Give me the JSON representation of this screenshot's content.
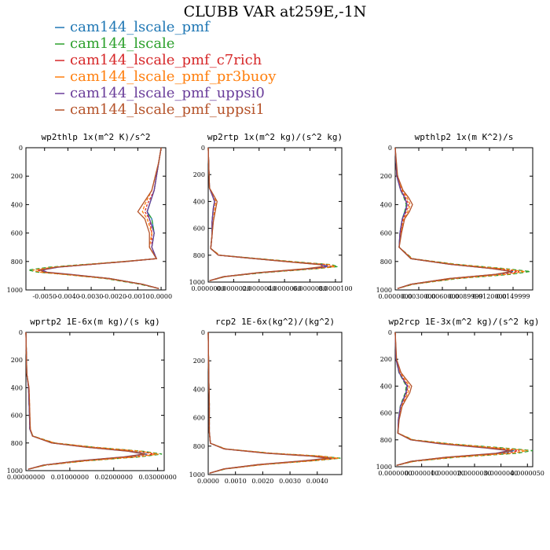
{
  "title": "CLUBB VAR at259E,-1N",
  "legend": [
    {
      "label": "cam144_lscale_pmf",
      "color": "#1f77b4"
    },
    {
      "label": "cam144_lscale",
      "color": "#2ca02c"
    },
    {
      "label": "cam144_lscale_pmf_c7rich",
      "color": "#d62728"
    },
    {
      "label": "cam144_lscale_pmf_pr3buoy",
      "color": "#ff7f0e"
    },
    {
      "label": "cam144_lscale_pmf_uppsi0",
      "color": "#6a3d9a"
    },
    {
      "label": "cam144_lscale_pmf_uppsi1",
      "color": "#b5532a"
    }
  ],
  "chart_data": [
    {
      "type": "line",
      "title": "wp2thlp  1x(m^2 K)/s^2",
      "xlim": [
        -0.0058,
        0.0002
      ],
      "ylim": [
        1000,
        0
      ],
      "yticks": [
        "0",
        "200",
        "400",
        "600",
        "800",
        "1000"
      ],
      "xticks": [
        "-0.0050",
        "-0.0040",
        "-0.0030",
        "-0.0020",
        "-0.0010",
        "0.0000"
      ],
      "xtick_values": [
        -0.005,
        -0.004,
        -0.003,
        -0.002,
        -0.001,
        0.0
      ],
      "y": [
        0,
        100,
        300,
        400,
        450,
        500,
        600,
        700,
        780,
        800,
        840,
        860,
        875,
        890,
        920,
        960,
        990
      ],
      "series": [
        {
          "values": [
            0.0,
            -0.0001,
            -0.0003,
            -0.0005,
            -0.0006,
            -0.0004,
            -0.0003,
            -0.0004,
            -0.0002,
            -0.0015,
            -0.0045,
            -0.0052,
            -0.005,
            -0.004,
            -0.0022,
            -0.0008,
            -0.0001
          ]
        },
        {
          "values": [
            0.0,
            -0.0001,
            -0.0003,
            -0.0005,
            -0.0006,
            -0.0004,
            -0.0003,
            -0.0004,
            -0.0002,
            -0.0016,
            -0.0048,
            -0.0057,
            -0.0053,
            -0.0042,
            -0.0024,
            -0.0009,
            -0.0001
          ]
        },
        {
          "values": [
            0.0,
            -0.0001,
            -0.0003,
            -0.0006,
            -0.0007,
            -0.0005,
            -0.0004,
            -0.0004,
            -0.0002,
            -0.0015,
            -0.0044,
            -0.0053,
            -0.0051,
            -0.0041,
            -0.0023,
            -0.0008,
            -0.0001
          ]
        },
        {
          "values": [
            0.0,
            -0.0001,
            -0.0004,
            -0.0007,
            -0.0008,
            -0.0006,
            -0.0004,
            -0.0005,
            -0.0002,
            -0.0016,
            -0.0046,
            -0.0055,
            -0.0052,
            -0.0042,
            -0.0023,
            -0.0008,
            -0.0001
          ]
        },
        {
          "values": [
            0.0,
            -0.0001,
            -0.0003,
            -0.0005,
            -0.0006,
            -0.0005,
            -0.0003,
            -0.0004,
            -0.0002,
            -0.0015,
            -0.0044,
            -0.0051,
            -0.0049,
            -0.0039,
            -0.0022,
            -0.0008,
            -0.0001
          ]
        },
        {
          "values": [
            0.0,
            -0.0001,
            -0.0004,
            -0.0008,
            -0.001,
            -0.0007,
            -0.0005,
            -0.0005,
            -0.0002,
            -0.0015,
            -0.0045,
            -0.0052,
            -0.005,
            -0.004,
            -0.0022,
            -0.0008,
            -0.0001
          ]
        }
      ]
    },
    {
      "type": "line",
      "title": "wp2rtp  1x(m^2 kg)/(s^2 kg)",
      "xlim": [
        0,
        1.05e-05
      ],
      "ylim": [
        1000,
        0
      ],
      "yticks": [
        "0",
        "200",
        "400",
        "600",
        "800",
        "1000"
      ],
      "xticks": [
        "0.0000000",
        "0.0000020",
        "0.0000040",
        "0.0000060",
        "0.0000080",
        "0.0000100"
      ],
      "xtick_values": [
        0,
        2e-06,
        4e-06,
        6e-06,
        8e-06,
        1e-05
      ],
      "y": [
        0,
        300,
        350,
        400,
        450,
        550,
        650,
        750,
        800,
        820,
        850,
        870,
        885,
        900,
        930,
        960,
        990
      ],
      "series": [
        {
          "values": [
            0.0,
            1e-07,
            3e-07,
            5e-07,
            4e-07,
            3e-07,
            3e-07,
            2e-07,
            8e-07,
            3e-06,
            6.5e-06,
            9e-06,
            9.4e-06,
            8e-06,
            4e-06,
            1.2e-06,
            1e-07
          ]
        },
        {
          "values": [
            0.0,
            1e-07,
            3e-07,
            5e-07,
            4e-07,
            3e-07,
            3e-07,
            2e-07,
            9e-07,
            3.3e-06,
            7e-06,
            9.7e-06,
            1.02e-05,
            8.6e-06,
            4.4e-06,
            1.3e-06,
            1e-07
          ]
        },
        {
          "values": [
            0.0,
            1e-07,
            3e-07,
            5e-07,
            4e-07,
            3e-07,
            3e-07,
            2e-07,
            8e-07,
            3.1e-06,
            6.6e-06,
            9.2e-06,
            9.7e-06,
            8.2e-06,
            4.1e-06,
            1.2e-06,
            1e-07
          ]
        },
        {
          "values": [
            0.0,
            1e-07,
            4e-07,
            6e-07,
            5e-07,
            4e-07,
            3e-07,
            2e-07,
            9e-07,
            3.2e-06,
            6.8e-06,
            9.5e-06,
            1e-05,
            8.4e-06,
            4.2e-06,
            1.3e-06,
            1e-07
          ]
        },
        {
          "values": [
            0.0,
            1e-07,
            3e-07,
            5e-07,
            4e-07,
            3e-07,
            3e-07,
            2e-07,
            8e-07,
            3e-06,
            6.4e-06,
            8.9e-06,
            9.3e-06,
            7.9e-06,
            4e-06,
            1.2e-06,
            1e-07
          ]
        },
        {
          "values": [
            0.0,
            1e-07,
            4e-07,
            7e-07,
            6e-07,
            4e-07,
            3e-07,
            2e-07,
            8e-07,
            3e-06,
            6.4e-06,
            8.8e-06,
            9e-06,
            7.7e-06,
            3.9e-06,
            1.2e-06,
            1e-07
          ]
        }
      ]
    },
    {
      "type": "line",
      "title": "wpthlp2  1x(m K^2)/s",
      "xlim": [
        0,
        0.0175
      ],
      "ylim": [
        1000,
        0
      ],
      "yticks": [
        "0",
        "200",
        "400",
        "600",
        "800",
        "1000"
      ],
      "xticks": [
        "0.0000000",
        "0.0030000",
        "0.0060000",
        "0.0089999",
        "0.0120000",
        "0.0149999"
      ],
      "xtick_values": [
        0,
        0.003,
        0.006,
        0.0089999,
        0.012,
        0.0149999
      ],
      "y": [
        0,
        200,
        300,
        350,
        400,
        450,
        500,
        600,
        700,
        780,
        820,
        850,
        870,
        890,
        920,
        960,
        990
      ],
      "series": [
        {
          "values": [
            0.0,
            0.0002,
            0.0007,
            0.0012,
            0.0015,
            0.0012,
            0.0009,
            0.0006,
            0.0005,
            0.002,
            0.007,
            0.0125,
            0.015,
            0.013,
            0.007,
            0.002,
            0.0003
          ]
        },
        {
          "values": [
            0.0,
            0.0002,
            0.0007,
            0.0011,
            0.0014,
            0.0012,
            0.0009,
            0.0006,
            0.0005,
            0.0022,
            0.0078,
            0.014,
            0.0172,
            0.0148,
            0.008,
            0.0023,
            0.0003
          ]
        },
        {
          "values": [
            0.0,
            0.0002,
            0.0008,
            0.0013,
            0.0017,
            0.0014,
            0.001,
            0.0007,
            0.0005,
            0.0021,
            0.0073,
            0.013,
            0.0158,
            0.0136,
            0.0073,
            0.0021,
            0.0003
          ]
        },
        {
          "values": [
            0.0,
            0.0002,
            0.0009,
            0.0015,
            0.0019,
            0.0016,
            0.0011,
            0.0007,
            0.0005,
            0.0021,
            0.0075,
            0.0135,
            0.0165,
            0.0142,
            0.0076,
            0.0022,
            0.0003
          ]
        },
        {
          "values": [
            0.0,
            0.0002,
            0.0007,
            0.0012,
            0.0015,
            0.0013,
            0.0009,
            0.0006,
            0.0005,
            0.002,
            0.0069,
            0.0123,
            0.0148,
            0.0128,
            0.0069,
            0.002,
            0.0003
          ]
        },
        {
          "values": [
            0.0,
            0.0003,
            0.001,
            0.0017,
            0.0022,
            0.0018,
            0.0012,
            0.0008,
            0.0005,
            0.002,
            0.007,
            0.0124,
            0.0148,
            0.0128,
            0.0068,
            0.002,
            0.0003
          ]
        }
      ]
    },
    {
      "type": "line",
      "title": "wprtp2  1E-6x(m kg)/(s kg)",
      "xlim": [
        0,
        0.0315
      ],
      "ylim": [
        1000,
        0
      ],
      "yticks": [
        "0",
        "200",
        "400",
        "600",
        "800",
        "1000"
      ],
      "xticks": [
        "0.00000000",
        "0.01000000",
        "0.02000000",
        "0.03000000"
      ],
      "xtick_values": [
        0,
        0.01,
        0.02,
        0.03
      ],
      "y": [
        0,
        300,
        400,
        500,
        600,
        700,
        750,
        800,
        830,
        860,
        880,
        900,
        930,
        960,
        990
      ],
      "series": [
        {
          "values": [
            0.0,
            0.0002,
            0.0006,
            0.0007,
            0.0008,
            0.0009,
            0.0015,
            0.006,
            0.014,
            0.024,
            0.0275,
            0.023,
            0.012,
            0.004,
            0.0005
          ]
        },
        {
          "values": [
            0.0,
            0.0002,
            0.0006,
            0.0007,
            0.0008,
            0.0009,
            0.0016,
            0.0066,
            0.0155,
            0.0268,
            0.031,
            0.026,
            0.0135,
            0.0045,
            0.0005
          ]
        },
        {
          "values": [
            0.0,
            0.0002,
            0.0006,
            0.0007,
            0.0008,
            0.0009,
            0.0015,
            0.0063,
            0.0148,
            0.0255,
            0.0294,
            0.0246,
            0.0128,
            0.0043,
            0.0005
          ]
        },
        {
          "values": [
            0.0,
            0.0002,
            0.0007,
            0.0008,
            0.0009,
            0.001,
            0.0016,
            0.0065,
            0.0152,
            0.0262,
            0.0302,
            0.0253,
            0.0132,
            0.0044,
            0.0005
          ]
        },
        {
          "values": [
            0.0,
            0.0002,
            0.0006,
            0.0007,
            0.0008,
            0.0009,
            0.0015,
            0.0058,
            0.0136,
            0.0233,
            0.0268,
            0.0224,
            0.0117,
            0.0039,
            0.0005
          ]
        },
        {
          "values": [
            0.0,
            0.0002,
            0.0007,
            0.0008,
            0.0009,
            0.001,
            0.0015,
            0.0059,
            0.0138,
            0.0237,
            0.0272,
            0.0228,
            0.0119,
            0.004,
            0.0005
          ]
        }
      ]
    },
    {
      "type": "line",
      "title": "rcp2  1E-6x(kg^2)/(kg^2)",
      "xlim": [
        0,
        0.0049
      ],
      "ylim": [
        1000,
        0
      ],
      "yticks": [
        "0",
        "200",
        "400",
        "600",
        "800",
        "1000"
      ],
      "xticks": [
        "0.0000",
        "0.0010",
        "0.0020",
        "0.0030",
        "0.0040"
      ],
      "xtick_values": [
        0,
        0.001,
        0.002,
        0.003,
        0.004
      ],
      "y": [
        0,
        300,
        400,
        500,
        600,
        700,
        780,
        820,
        850,
        870,
        885,
        900,
        930,
        960,
        990
      ],
      "series": [
        {
          "values": [
            0.0,
            2e-05,
            3e-05,
            4e-05,
            4e-05,
            4e-05,
            8e-05,
            0.0006,
            0.0022,
            0.0039,
            0.00455,
            0.0038,
            0.0019,
            0.0006,
            5e-05
          ]
        },
        {
          "values": [
            0.0,
            2e-05,
            3e-05,
            4e-05,
            4e-05,
            4e-05,
            8e-05,
            0.00064,
            0.00235,
            0.00415,
            0.00485,
            0.00405,
            0.002,
            0.00063,
            5e-05
          ]
        },
        {
          "values": [
            0.0,
            2e-05,
            3e-05,
            4e-05,
            4e-05,
            4e-05,
            8e-05,
            0.00062,
            0.00228,
            0.00402,
            0.0047,
            0.00392,
            0.00195,
            0.00061,
            5e-05
          ]
        },
        {
          "values": [
            0.0,
            2e-05,
            3e-05,
            4e-05,
            4e-05,
            4e-05,
            8e-05,
            0.00063,
            0.00232,
            0.0041,
            0.00478,
            0.00398,
            0.00198,
            0.00062,
            5e-05
          ]
        },
        {
          "values": [
            0.0,
            2e-05,
            3e-05,
            4e-05,
            4e-05,
            4e-05,
            8e-05,
            0.00058,
            0.00212,
            0.00375,
            0.00438,
            0.00365,
            0.00182,
            0.00057,
            5e-05
          ]
        },
        {
          "values": [
            0.0,
            2e-05,
            3e-05,
            4e-05,
            4e-05,
            4e-05,
            8e-05,
            0.00059,
            0.00216,
            0.0038,
            0.00443,
            0.0037,
            0.00184,
            0.00058,
            5e-05
          ]
        }
      ]
    },
    {
      "type": "line",
      "title": "wp2rcp  1E-3x(m^2 kg)/(s^2 kg)",
      "xlim": [
        0,
        5.2e-06
      ],
      "ylim": [
        1000,
        0
      ],
      "yticks": [
        "0",
        "200",
        "400",
        "600",
        "800",
        "1000"
      ],
      "xticks": [
        "0.0000000",
        "0.0000010",
        "0.0000020",
        "0.0000030",
        "0.0000040",
        "0.0000050"
      ],
      "xtick_values": [
        0,
        1e-06,
        2e-06,
        3e-06,
        4e-06,
        5e-06
      ],
      "y": [
        0,
        200,
        300,
        350,
        400,
        450,
        500,
        550,
        650,
        750,
        800,
        830,
        860,
        880,
        900,
        930,
        960,
        990
      ],
      "series": [
        {
          "values": [
            0.0,
            3e-08,
            1.5e-07,
            3e-07,
            4.5e-07,
            4e-07,
            3e-07,
            2e-07,
            1.2e-07,
            1e-07,
            6e-07,
            1.8e-06,
            3.5e-06,
            4.5e-06,
            4e-06,
            2e-06,
            6e-07,
            5e-08
          ]
        },
        {
          "values": [
            0.0,
            3e-08,
            1.4e-07,
            2.8e-07,
            4.2e-07,
            3.8e-07,
            2.8e-07,
            1.9e-07,
            1.2e-07,
            1e-07,
            6.8e-07,
            2.1e-06,
            4.1e-06,
            5.2e-06,
            4.6e-06,
            2.3e-06,
            7e-07,
            5e-08
          ]
        },
        {
          "values": [
            0.0,
            3e-08,
            1.6e-07,
            3.2e-07,
            4.8e-07,
            4.3e-07,
            3.2e-07,
            2.1e-07,
            1.3e-07,
            1e-07,
            6.3e-07,
            1.9e-06,
            3.7e-06,
            4.7e-06,
            4.2e-06,
            2.1e-06,
            6e-07,
            5e-08
          ]
        },
        {
          "values": [
            0.0,
            4e-08,
            1.8e-07,
            3.6e-07,
            5.4e-07,
            4.8e-07,
            3.6e-07,
            2.3e-07,
            1.4e-07,
            1e-07,
            6.6e-07,
            2e-06,
            3.9e-06,
            5e-06,
            4.4e-06,
            2.2e-06,
            7e-07,
            5e-08
          ]
        },
        {
          "values": [
            0.0,
            3e-08,
            1.5e-07,
            3e-07,
            4.6e-07,
            4.1e-07,
            3.1e-07,
            2e-07,
            1.2e-07,
            1e-07,
            5.8e-07,
            1.7e-06,
            3.4e-06,
            4.3e-06,
            3.8e-06,
            1.9e-06,
            6e-07,
            5e-08
          ]
        },
        {
          "values": [
            0.0,
            5e-08,
            2.2e-07,
            4.2e-07,
            6.2e-07,
            5.5e-07,
            4e-07,
            2.6e-07,
            1.5e-07,
            1e-07,
            6e-07,
            1.8e-06,
            3.5e-06,
            4.4e-06,
            3.9e-06,
            1.9e-06,
            6e-07,
            5e-08
          ]
        }
      ]
    }
  ]
}
